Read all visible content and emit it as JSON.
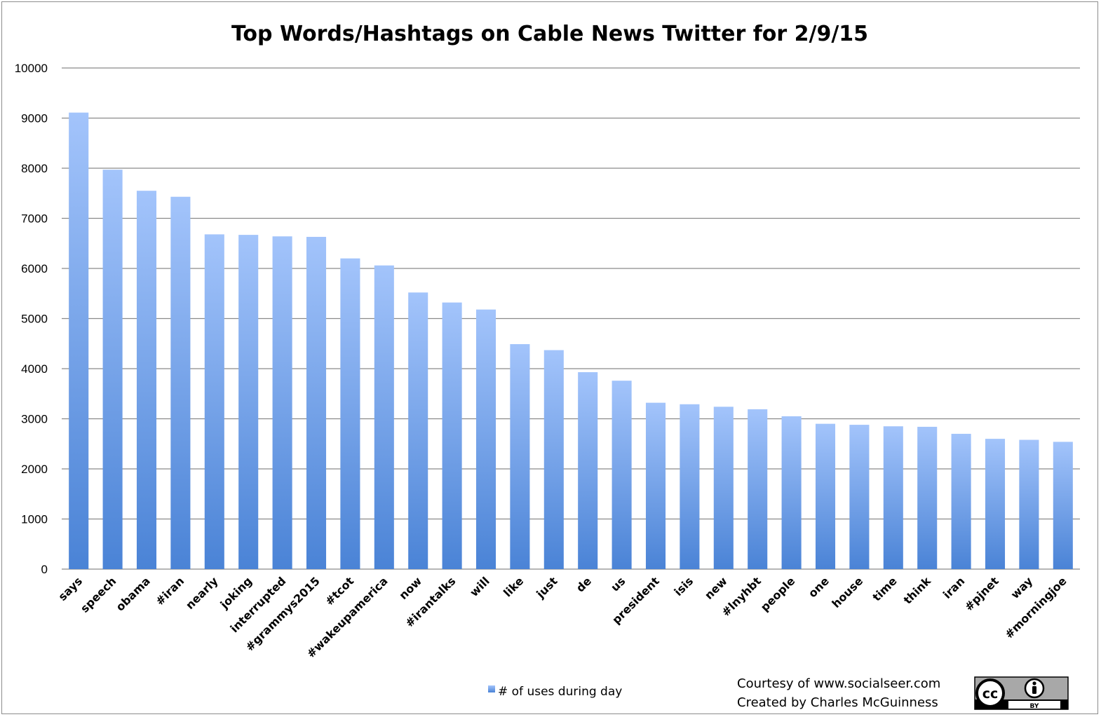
{
  "chart_data": {
    "type": "bar",
    "title": "Top Words/Hashtags on Cable News Twitter for 2/9/15",
    "xlabel": "",
    "ylabel": "",
    "ylim": [
      0,
      10000
    ],
    "yticks": [
      0,
      1000,
      2000,
      3000,
      4000,
      5000,
      6000,
      7000,
      8000,
      9000,
      10000
    ],
    "grid": true,
    "legend_position": "bottom",
    "categories": [
      "says",
      "speech",
      "obama",
      "#iran",
      "nearly",
      "joking",
      "interrupted",
      "#grammys2015",
      "#tcot",
      "#wakeupamerica",
      "now",
      "#irantalks",
      "will",
      "like",
      "just",
      "de",
      "us",
      "president",
      "isis",
      "new",
      "#lnyhbt",
      "people",
      "one",
      "house",
      "time",
      "think",
      "iran",
      "#pjnet",
      "way",
      "#morningjoe"
    ],
    "series": [
      {
        "name": "# of uses during day",
        "color": "#5b8fd9",
        "values": [
          9110,
          7970,
          7550,
          7430,
          6680,
          6670,
          6640,
          6630,
          6200,
          6060,
          5520,
          5320,
          5180,
          4490,
          4370,
          3930,
          3760,
          3320,
          3290,
          3240,
          3190,
          3050,
          2900,
          2880,
          2850,
          2840,
          2700,
          2600,
          2580,
          2540
        ]
      }
    ]
  },
  "credits": {
    "line1": "Courtesy of www.socialseer.com",
    "line2": "Created by Charles McGuinness"
  },
  "license_badge": {
    "icon": "cc-by-icon",
    "cc_text": "cc",
    "by_text": "BY"
  }
}
